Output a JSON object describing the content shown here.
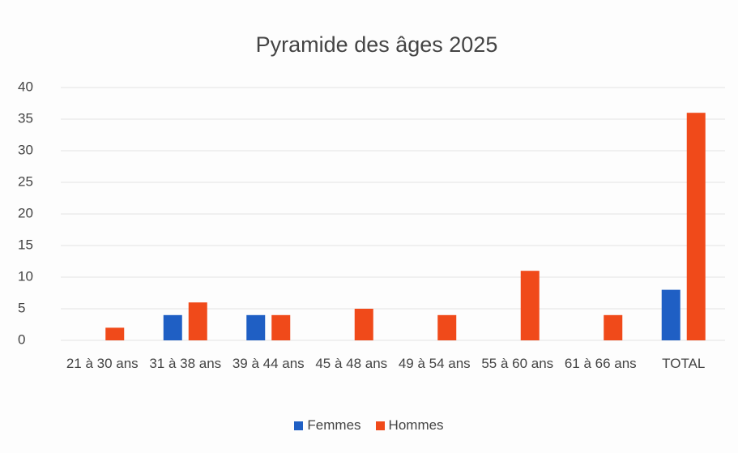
{
  "chart_data": {
    "type": "bar",
    "title": "Pyramide des âges 2025",
    "categories": [
      "21 à 30 ans",
      "31 à 38 ans",
      "39 à 44 ans",
      "45 à 48 ans",
      "49 à 54 ans",
      "55 à 60 ans",
      "61 à 66 ans",
      "TOTAL"
    ],
    "series": [
      {
        "name": "Femmes",
        "color": "#1f5fc4",
        "values": [
          0,
          4,
          4,
          0,
          0,
          0,
          0,
          8
        ]
      },
      {
        "name": "Hommes",
        "color": "#f04a1a",
        "values": [
          2,
          6,
          4,
          5,
          4,
          11,
          4,
          36
        ]
      }
    ],
    "ylim": [
      0,
      40
    ],
    "yticks": [
      0,
      5,
      10,
      15,
      20,
      25,
      30,
      35,
      40
    ],
    "grid": true,
    "legend": "bottom"
  }
}
